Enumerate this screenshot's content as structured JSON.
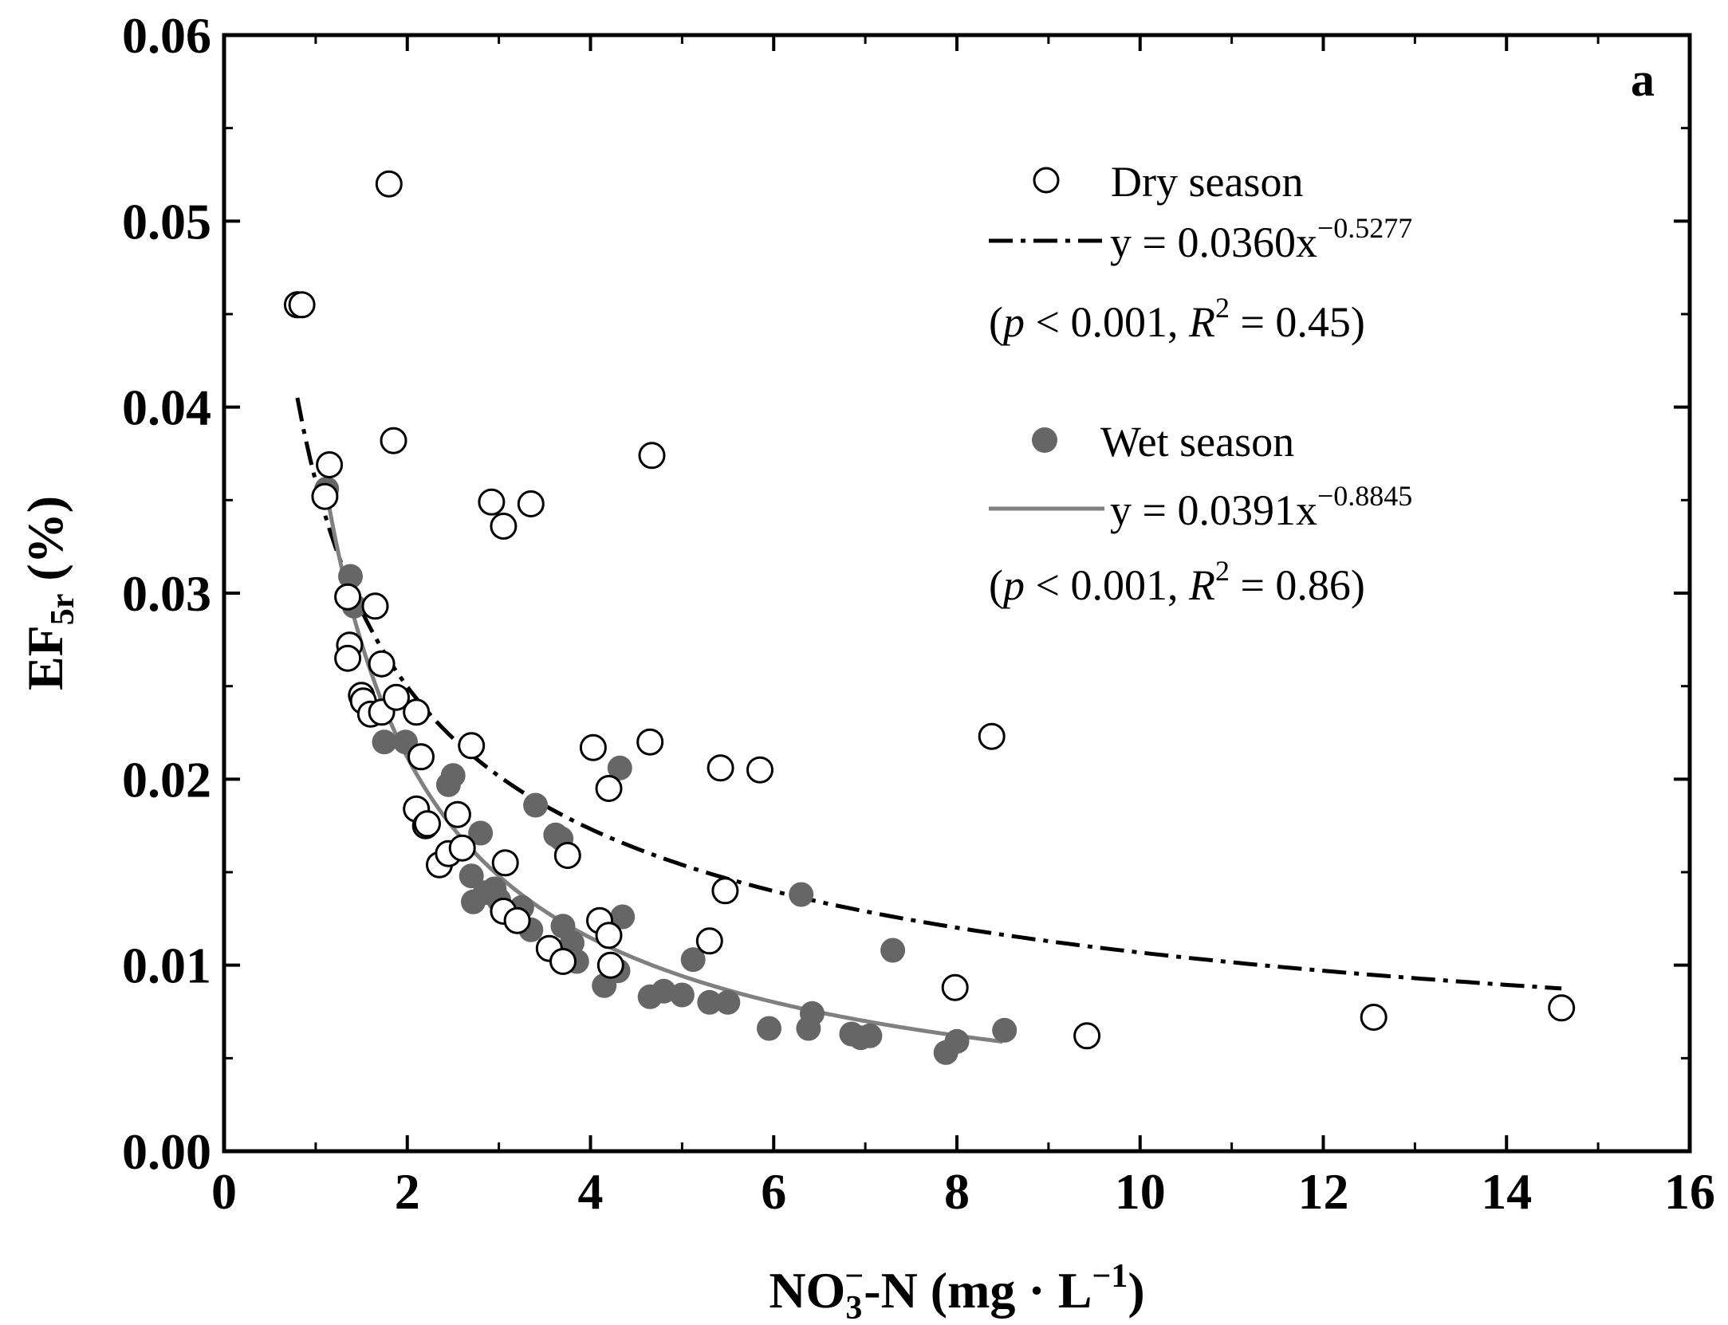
{
  "chart_data": {
    "type": "scatter",
    "panel_label": "a",
    "xlabel": {
      "main": "NO",
      "sub": "3",
      "sup": "−",
      "rest": "-N (mg · L",
      "unit_sup": "−1",
      "close": ")"
    },
    "ylabel": {
      "main": "EF",
      "sub": "5r",
      "rest": " (%)"
    },
    "xlim": [
      0,
      16
    ],
    "ylim": [
      0,
      0.06
    ],
    "x_ticks": [
      "0",
      "2",
      "4",
      "6",
      "8",
      "10",
      "12",
      "14",
      "16"
    ],
    "y_ticks": [
      "0.00",
      "0.01",
      "0.02",
      "0.03",
      "0.04",
      "0.05",
      "0.06"
    ],
    "series": [
      {
        "name": "Dry season",
        "marker": "open-circle",
        "color": "#000000",
        "fit": {
          "a": 0.036,
          "b": -0.5277,
          "x_range": [
            0.8,
            14.6
          ],
          "style": "dash-dot",
          "color": "#000000"
        },
        "equation": {
          "pre": "y = 0.0360x",
          "exp": "−0.5277"
        },
        "stats": {
          "open": "(",
          "p": "p",
          "p_text": " < 0.001, ",
          "r": "R",
          "r_sup": "2",
          "r_text": " = 0.45)"
        },
        "points": [
          [
            0.8,
            0.0455
          ],
          [
            0.85,
            0.0455
          ],
          [
            1.1,
            0.0352
          ],
          [
            1.15,
            0.0369
          ],
          [
            1.35,
            0.0298
          ],
          [
            1.37,
            0.0272
          ],
          [
            1.35,
            0.0265
          ],
          [
            1.5,
            0.0245
          ],
          [
            1.52,
            0.0242
          ],
          [
            1.6,
            0.0235
          ],
          [
            1.65,
            0.0293
          ],
          [
            1.72,
            0.0262
          ],
          [
            1.72,
            0.0236
          ],
          [
            1.8,
            0.052
          ],
          [
            1.85,
            0.0382
          ],
          [
            1.88,
            0.0244
          ],
          [
            2.1,
            0.0236
          ],
          [
            2.15,
            0.0212
          ],
          [
            2.1,
            0.0184
          ],
          [
            2.2,
            0.0175
          ],
          [
            2.22,
            0.0176
          ],
          [
            2.35,
            0.0154
          ],
          [
            2.45,
            0.016
          ],
          [
            2.55,
            0.0181
          ],
          [
            2.6,
            0.0163
          ],
          [
            2.7,
            0.0218
          ],
          [
            2.92,
            0.0349
          ],
          [
            3.05,
            0.0336
          ],
          [
            3.07,
            0.0155
          ],
          [
            3.05,
            0.0129
          ],
          [
            3.2,
            0.0124
          ],
          [
            3.35,
            0.0348
          ],
          [
            3.55,
            0.0109
          ],
          [
            3.7,
            0.0102
          ],
          [
            3.75,
            0.0159
          ],
          [
            4.03,
            0.0217
          ],
          [
            4.1,
            0.0124
          ],
          [
            4.2,
            0.0195
          ],
          [
            4.2,
            0.0116
          ],
          [
            4.22,
            0.01
          ],
          [
            4.65,
            0.022
          ],
          [
            4.67,
            0.0374
          ],
          [
            5.3,
            0.0113
          ],
          [
            5.42,
            0.0206
          ],
          [
            5.47,
            0.014
          ],
          [
            5.85,
            0.0205
          ],
          [
            7.98,
            0.0088
          ],
          [
            8.38,
            0.0223
          ],
          [
            9.42,
            0.0062
          ],
          [
            12.55,
            0.0072
          ],
          [
            14.6,
            0.0077
          ]
        ]
      },
      {
        "name": "Wet season",
        "marker": "filled-circle",
        "color": "#666666",
        "fit": {
          "a": 0.0391,
          "b": -0.8845,
          "x_range": [
            1.1,
            8.5
          ],
          "style": "solid",
          "color": "#808080"
        },
        "equation": {
          "pre": "y = 0.0391x",
          "exp": "−0.8845"
        },
        "stats": {
          "open": "(",
          "p": "p",
          "p_text": " < 0.001, ",
          "r": "R",
          "r_sup": "2",
          "r_text": " = 0.86)"
        },
        "points": [
          [
            1.12,
            0.0356
          ],
          [
            1.38,
            0.0309
          ],
          [
            1.42,
            0.0293
          ],
          [
            1.75,
            0.022
          ],
          [
            1.98,
            0.022
          ],
          [
            2.45,
            0.0197
          ],
          [
            2.5,
            0.0202
          ],
          [
            2.7,
            0.0148
          ],
          [
            2.72,
            0.0134
          ],
          [
            2.8,
            0.0171
          ],
          [
            2.85,
            0.0139
          ],
          [
            2.95,
            0.0141
          ],
          [
            3.0,
            0.0135
          ],
          [
            3.25,
            0.0131
          ],
          [
            3.35,
            0.0119
          ],
          [
            3.4,
            0.0186
          ],
          [
            3.62,
            0.017
          ],
          [
            3.7,
            0.0121
          ],
          [
            3.68,
            0.0168
          ],
          [
            3.8,
            0.0112
          ],
          [
            3.85,
            0.0102
          ],
          [
            4.15,
            0.0089
          ],
          [
            4.3,
            0.0097
          ],
          [
            4.32,
            0.0206
          ],
          [
            4.35,
            0.0126
          ],
          [
            4.65,
            0.0083
          ],
          [
            4.8,
            0.0086
          ],
          [
            5.0,
            0.0084
          ],
          [
            5.12,
            0.0103
          ],
          [
            5.3,
            0.008
          ],
          [
            5.5,
            0.008
          ],
          [
            5.95,
            0.0066
          ],
          [
            6.3,
            0.0138
          ],
          [
            6.38,
            0.0066
          ],
          [
            6.42,
            0.0074
          ],
          [
            6.85,
            0.0063
          ],
          [
            6.95,
            0.0061
          ],
          [
            7.05,
            0.0062
          ],
          [
            7.3,
            0.0108
          ],
          [
            7.88,
            0.0053
          ],
          [
            8.0,
            0.0059
          ],
          [
            8.52,
            0.0065
          ]
        ]
      }
    ]
  }
}
